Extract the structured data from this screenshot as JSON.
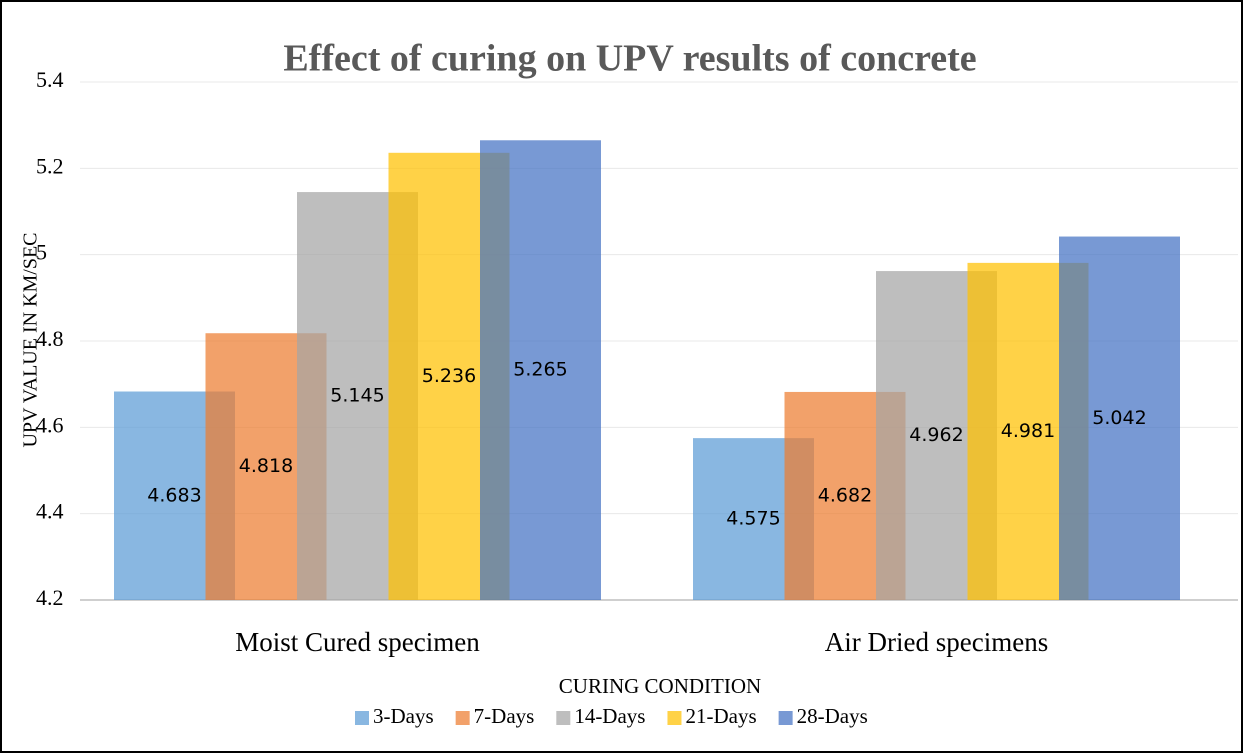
{
  "chart_data": {
    "type": "bar",
    "title": "Effect of curing on UPV results of concrete",
    "x_label": "CURING CONDITION",
    "y_label": "UPV VALUE IN KM/SEC",
    "categories": [
      "Moist Cured specimen",
      "Air Dried specimens"
    ],
    "series": [
      {
        "name": "3-Days",
        "color": "#5b9bd5",
        "values": [
          4.683,
          4.575
        ]
      },
      {
        "name": "7-Days",
        "color": "#ed7d31",
        "values": [
          4.818,
          4.682
        ]
      },
      {
        "name": "14-Days",
        "color": "#a5a5a5",
        "values": [
          5.145,
          4.962
        ]
      },
      {
        "name": "21-Days",
        "color": "#ffc000",
        "values": [
          5.236,
          4.981
        ]
      },
      {
        "name": "28-Days",
        "color": "#4472c4",
        "values": [
          5.265,
          5.042
        ]
      }
    ],
    "ylim": [
      4.2,
      5.4
    ],
    "yticks": [
      4.2,
      4.4,
      4.6,
      4.8,
      5,
      5.2,
      5.4
    ],
    "grid": true,
    "legend": "bottom"
  }
}
